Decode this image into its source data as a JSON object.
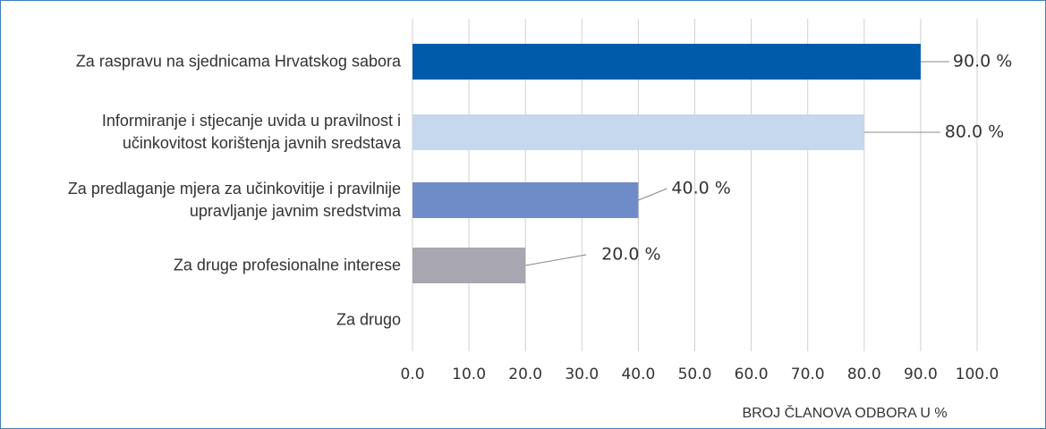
{
  "chart_data": {
    "type": "bar",
    "orientation": "horizontal",
    "categories": [
      "Za raspravu na sjednicama Hrvatskog sabora",
      "Informiranje i stjecanje uvida u pravilnost i učinkovitost korištenja javnih sredstava",
      "Za predlaganje mjera za učinkovitije i pravilnije upravljanje javnim sredstvima",
      "Za druge profesionalne interese",
      "Za drugo"
    ],
    "values": [
      90,
      80,
      40,
      20,
      null
    ],
    "value_labels": [
      "90.0 %",
      "80.0 %",
      "40.0 %",
      "20.0 %",
      null
    ],
    "colors": [
      "#005bab",
      "#c5d8ee",
      "#6f8cc9",
      "#a8a6b0",
      null
    ],
    "xlabel": "BROJ ČLANOVA ODBORA U %",
    "xlim": [
      0,
      100
    ],
    "xticks": [
      {
        "value": 0,
        "label": "0.0"
      },
      {
        "value": 10,
        "label": "10.0"
      },
      {
        "value": 20,
        "label": "20.0"
      },
      {
        "value": 30,
        "label": "30.0"
      },
      {
        "value": 40,
        "label": "40.0"
      },
      {
        "value": 50,
        "label": "50.0"
      },
      {
        "value": 60,
        "label": "60.0"
      },
      {
        "value": 70,
        "label": "70.0"
      },
      {
        "value": 80,
        "label": "80.0"
      },
      {
        "value": 90,
        "label": "90.0"
      },
      {
        "value": 100,
        "label": "100.0"
      }
    ],
    "grid": true
  }
}
